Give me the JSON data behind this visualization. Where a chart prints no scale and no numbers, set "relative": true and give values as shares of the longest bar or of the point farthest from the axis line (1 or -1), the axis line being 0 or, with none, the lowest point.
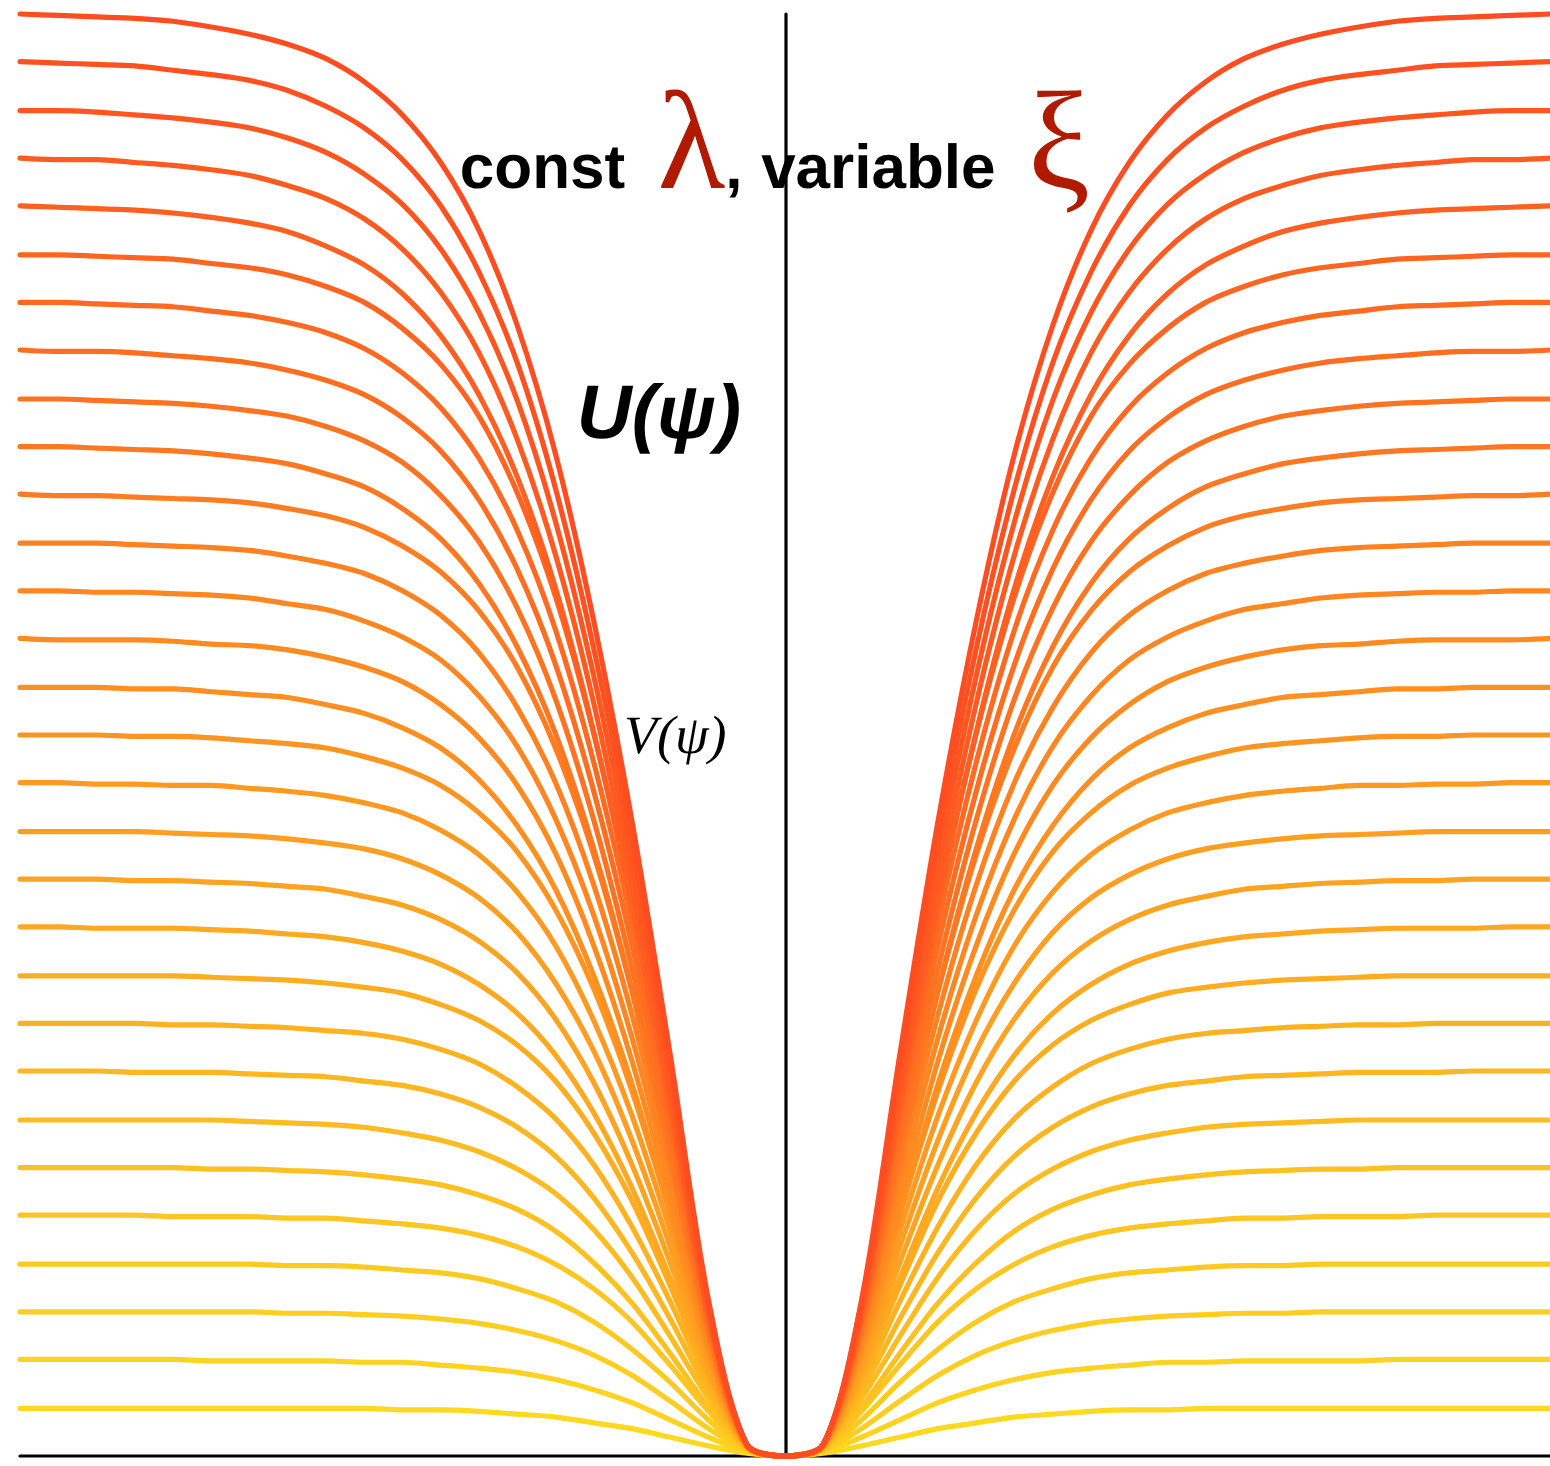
{
  "chart_data": {
    "type": "line",
    "relative": true,
    "tick_labels": false,
    "title": "const λ, variable ξ",
    "ylabel": "U(ψ)",
    "annotations": [
      "V(ψ)"
    ],
    "categories": [
      null,
      null,
      null,
      null,
      null,
      null,
      null,
      null,
      null,
      null,
      null,
      null,
      null,
      null,
      null,
      null,
      null,
      null,
      null,
      null,
      null,
      null,
      null,
      null,
      null,
      null,
      null,
      null,
      null,
      null,
      null,
      null,
      null,
      null,
      null,
      null,
      null,
      null,
      null,
      null,
      null
    ],
    "series": [
      {
        "color": "#ffd820",
        "values": [
          0.033,
          0.033,
          0.033,
          0.033,
          0.033,
          0.033,
          0.033,
          0.033,
          0.033,
          0.033,
          0.032,
          0.032,
          0.031,
          0.029,
          0.027,
          0.023,
          0.019,
          0.013,
          0.007,
          0.002,
          0,
          0.002,
          0.007,
          0.013,
          0.019,
          0.023,
          0.027,
          0.029,
          0.031,
          0.032,
          0.032,
          0.033,
          0.033,
          0.033,
          0.033,
          0.033,
          0.033,
          0.033,
          0.033,
          0.033,
          0.033
        ]
      },
      {
        "color": "#ffd320",
        "values": [
          0.067,
          0.067,
          0.067,
          0.067,
          0.067,
          0.066,
          0.066,
          0.066,
          0.066,
          0.065,
          0.065,
          0.063,
          0.061,
          0.058,
          0.053,
          0.046,
          0.037,
          0.025,
          0.013,
          0.003,
          0,
          0.003,
          0.013,
          0.025,
          0.037,
          0.046,
          0.053,
          0.058,
          0.061,
          0.063,
          0.065,
          0.065,
          0.066,
          0.066,
          0.066,
          0.066,
          0.067,
          0.067,
          0.067,
          0.067,
          0.067
        ]
      },
      {
        "color": "#ffce20",
        "values": [
          0.1,
          0.1,
          0.1,
          0.1,
          0.1,
          0.1,
          0.1,
          0.099,
          0.099,
          0.098,
          0.097,
          0.095,
          0.092,
          0.087,
          0.08,
          0.07,
          0.056,
          0.038,
          0.019,
          0.004,
          0,
          0.004,
          0.019,
          0.038,
          0.056,
          0.07,
          0.08,
          0.087,
          0.092,
          0.095,
          0.097,
          0.098,
          0.099,
          0.099,
          0.1,
          0.1,
          0.1,
          0.1,
          0.1,
          0.1,
          0.1
        ]
      },
      {
        "color": "#ffca20",
        "values": [
          0.133,
          0.133,
          0.133,
          0.133,
          0.133,
          0.133,
          0.133,
          0.132,
          0.132,
          0.131,
          0.129,
          0.127,
          0.123,
          0.116,
          0.107,
          0.093,
          0.074,
          0.051,
          0.025,
          0.004,
          0,
          0.004,
          0.025,
          0.051,
          0.074,
          0.093,
          0.107,
          0.116,
          0.123,
          0.127,
          0.129,
          0.131,
          0.132,
          0.132,
          0.133,
          0.133,
          0.133,
          0.133,
          0.133,
          0.133,
          0.133
        ]
      },
      {
        "color": "#ffc520",
        "values": [
          0.167,
          0.167,
          0.167,
          0.167,
          0.166,
          0.166,
          0.166,
          0.165,
          0.165,
          0.163,
          0.161,
          0.158,
          0.153,
          0.145,
          0.133,
          0.116,
          0.093,
          0.063,
          0.031,
          0.005,
          0,
          0.005,
          0.031,
          0.063,
          0.093,
          0.116,
          0.133,
          0.145,
          0.153,
          0.158,
          0.161,
          0.163,
          0.165,
          0.165,
          0.166,
          0.166,
          0.166,
          0.167,
          0.167,
          0.167,
          0.167
        ]
      },
      {
        "color": "#ffc020",
        "values": [
          0.2,
          0.2,
          0.2,
          0.2,
          0.2,
          0.199,
          0.199,
          0.198,
          0.197,
          0.195,
          0.192,
          0.188,
          0.181,
          0.171,
          0.156,
          0.134,
          0.106,
          0.071,
          0.034,
          0.005,
          0,
          0.005,
          0.034,
          0.071,
          0.106,
          0.134,
          0.156,
          0.171,
          0.181,
          0.188,
          0.192,
          0.195,
          0.197,
          0.198,
          0.199,
          0.199,
          0.2,
          0.2,
          0.2,
          0.2,
          0.2
        ]
      },
      {
        "color": "#ffbb20",
        "values": [
          0.233,
          0.233,
          0.233,
          0.233,
          0.233,
          0.233,
          0.232,
          0.231,
          0.23,
          0.228,
          0.224,
          0.219,
          0.211,
          0.199,
          0.182,
          0.157,
          0.124,
          0.083,
          0.04,
          0.006,
          0,
          0.006,
          0.04,
          0.083,
          0.124,
          0.157,
          0.182,
          0.199,
          0.211,
          0.219,
          0.224,
          0.228,
          0.23,
          0.231,
          0.232,
          0.233,
          0.233,
          0.233,
          0.233,
          0.233,
          0.233
        ]
      },
      {
        "color": "#ffb620",
        "values": [
          0.267,
          0.267,
          0.267,
          0.266,
          0.266,
          0.266,
          0.265,
          0.264,
          0.263,
          0.26,
          0.257,
          0.251,
          0.242,
          0.228,
          0.208,
          0.179,
          0.141,
          0.095,
          0.045,
          0.006,
          0,
          0.006,
          0.045,
          0.095,
          0.141,
          0.179,
          0.208,
          0.228,
          0.242,
          0.251,
          0.257,
          0.26,
          0.263,
          0.264,
          0.265,
          0.266,
          0.266,
          0.266,
          0.267,
          0.267,
          0.267
        ]
      },
      {
        "color": "#ffb120",
        "values": [
          0.3,
          0.3,
          0.3,
          0.3,
          0.299,
          0.299,
          0.298,
          0.297,
          0.295,
          0.293,
          0.289,
          0.282,
          0.272,
          0.256,
          0.234,
          0.202,
          0.159,
          0.107,
          0.05,
          0.006,
          0,
          0.006,
          0.05,
          0.107,
          0.159,
          0.202,
          0.234,
          0.256,
          0.272,
          0.282,
          0.289,
          0.293,
          0.295,
          0.297,
          0.298,
          0.299,
          0.299,
          0.3,
          0.3,
          0.3,
          0.3
        ]
      },
      {
        "color": "#ffad20",
        "values": [
          0.333,
          0.333,
          0.333,
          0.333,
          0.333,
          0.332,
          0.331,
          0.33,
          0.328,
          0.325,
          0.321,
          0.313,
          0.302,
          0.285,
          0.26,
          0.224,
          0.177,
          0.118,
          0.055,
          0.006,
          0,
          0.006,
          0.055,
          0.118,
          0.177,
          0.224,
          0.26,
          0.285,
          0.302,
          0.313,
          0.321,
          0.325,
          0.328,
          0.33,
          0.331,
          0.332,
          0.333,
          0.333,
          0.333,
          0.333,
          0.333
        ]
      },
      {
        "color": "#ffa820",
        "values": [
          0.367,
          0.367,
          0.366,
          0.366,
          0.366,
          0.365,
          0.364,
          0.362,
          0.36,
          0.356,
          0.35,
          0.341,
          0.327,
          0.307,
          0.278,
          0.238,
          0.186,
          0.123,
          0.056,
          0.006,
          0,
          0.006,
          0.056,
          0.123,
          0.186,
          0.238,
          0.278,
          0.307,
          0.327,
          0.341,
          0.35,
          0.356,
          0.36,
          0.362,
          0.364,
          0.365,
          0.366,
          0.366,
          0.366,
          0.367,
          0.367
        ]
      },
      {
        "color": "#ffa320",
        "values": [
          0.4,
          0.4,
          0.4,
          0.399,
          0.399,
          0.398,
          0.397,
          0.395,
          0.393,
          0.388,
          0.382,
          0.372,
          0.357,
          0.335,
          0.303,
          0.259,
          0.202,
          0.134,
          0.06,
          0.007,
          0,
          0.007,
          0.06,
          0.134,
          0.202,
          0.259,
          0.303,
          0.335,
          0.357,
          0.372,
          0.382,
          0.388,
          0.393,
          0.395,
          0.397,
          0.398,
          0.399,
          0.399,
          0.4,
          0.4,
          0.4
        ]
      },
      {
        "color": "#ff9e20",
        "values": [
          0.433,
          0.433,
          0.433,
          0.433,
          0.432,
          0.431,
          0.43,
          0.428,
          0.425,
          0.421,
          0.414,
          0.403,
          0.387,
          0.363,
          0.328,
          0.281,
          0.219,
          0.145,
          0.064,
          0.007,
          0,
          0.007,
          0.064,
          0.145,
          0.219,
          0.281,
          0.328,
          0.363,
          0.387,
          0.403,
          0.414,
          0.421,
          0.425,
          0.428,
          0.43,
          0.431,
          0.432,
          0.433,
          0.433,
          0.433,
          0.433
        ]
      },
      {
        "color": "#ff9920",
        "values": [
          0.467,
          0.467,
          0.466,
          0.466,
          0.465,
          0.465,
          0.463,
          0.461,
          0.458,
          0.453,
          0.446,
          0.434,
          0.417,
          0.391,
          0.354,
          0.302,
          0.236,
          0.156,
          0.069,
          0.007,
          0,
          0.007,
          0.069,
          0.156,
          0.236,
          0.302,
          0.354,
          0.391,
          0.417,
          0.434,
          0.446,
          0.453,
          0.458,
          0.461,
          0.463,
          0.465,
          0.465,
          0.466,
          0.466,
          0.467,
          0.467
        ]
      },
      {
        "color": "#ff9420",
        "values": [
          0.5,
          0.5,
          0.5,
          0.499,
          0.499,
          0.498,
          0.496,
          0.494,
          0.491,
          0.485,
          0.477,
          0.465,
          0.446,
          0.419,
          0.379,
          0.324,
          0.253,
          0.167,
          0.073,
          0.007,
          0,
          0.007,
          0.073,
          0.167,
          0.253,
          0.324,
          0.379,
          0.419,
          0.446,
          0.465,
          0.477,
          0.485,
          0.491,
          0.494,
          0.496,
          0.498,
          0.499,
          0.499,
          0.5,
          0.5,
          0.5
        ]
      },
      {
        "color": "#ff9020",
        "values": [
          0.533,
          0.533,
          0.533,
          0.532,
          0.532,
          0.53,
          0.528,
          0.526,
          0.521,
          0.515,
          0.505,
          0.491,
          0.469,
          0.437,
          0.393,
          0.333,
          0.258,
          0.168,
          0.073,
          0.007,
          0,
          0.007,
          0.073,
          0.168,
          0.258,
          0.333,
          0.393,
          0.437,
          0.469,
          0.491,
          0.505,
          0.515,
          0.521,
          0.526,
          0.528,
          0.53,
          0.532,
          0.532,
          0.533,
          0.533,
          0.533
        ]
      },
      {
        "color": "#ff8b20",
        "values": [
          0.567,
          0.566,
          0.566,
          0.566,
          0.565,
          0.563,
          0.562,
          0.559,
          0.554,
          0.547,
          0.537,
          0.521,
          0.498,
          0.465,
          0.418,
          0.354,
          0.274,
          0.178,
          0.077,
          0.007,
          0,
          0.007,
          0.077,
          0.178,
          0.274,
          0.354,
          0.418,
          0.465,
          0.498,
          0.521,
          0.537,
          0.547,
          0.554,
          0.559,
          0.562,
          0.563,
          0.565,
          0.566,
          0.566,
          0.566,
          0.567
        ]
      },
      {
        "color": "#ff8620",
        "values": [
          0.6,
          0.6,
          0.599,
          0.599,
          0.598,
          0.597,
          0.595,
          0.591,
          0.587,
          0.579,
          0.568,
          0.552,
          0.527,
          0.492,
          0.442,
          0.375,
          0.29,
          0.189,
          0.08,
          0.007,
          0,
          0.007,
          0.08,
          0.189,
          0.29,
          0.375,
          0.442,
          0.492,
          0.527,
          0.552,
          0.568,
          0.579,
          0.587,
          0.591,
          0.595,
          0.597,
          0.598,
          0.599,
          0.599,
          0.6,
          0.6
        ]
      },
      {
        "color": "#ff8120",
        "values": [
          0.633,
          0.633,
          0.633,
          0.632,
          0.631,
          0.63,
          0.628,
          0.624,
          0.619,
          0.612,
          0.6,
          0.583,
          0.557,
          0.519,
          0.467,
          0.396,
          0.306,
          0.199,
          0.084,
          0.007,
          0,
          0.007,
          0.084,
          0.199,
          0.306,
          0.396,
          0.467,
          0.519,
          0.557,
          0.583,
          0.6,
          0.612,
          0.619,
          0.624,
          0.628,
          0.63,
          0.631,
          0.632,
          0.633,
          0.633,
          0.633
        ]
      },
      {
        "color": "#ff7c20",
        "values": [
          0.667,
          0.666,
          0.666,
          0.665,
          0.664,
          0.663,
          0.661,
          0.657,
          0.652,
          0.644,
          0.631,
          0.613,
          0.586,
          0.547,
          0.491,
          0.417,
          0.322,
          0.209,
          0.087,
          0.008,
          0,
          0.008,
          0.087,
          0.209,
          0.322,
          0.417,
          0.491,
          0.547,
          0.586,
          0.613,
          0.631,
          0.644,
          0.652,
          0.657,
          0.661,
          0.663,
          0.664,
          0.665,
          0.666,
          0.666,
          0.667
        ]
      },
      {
        "color": "#ff7720",
        "values": [
          0.7,
          0.7,
          0.699,
          0.698,
          0.697,
          0.695,
          0.692,
          0.688,
          0.681,
          0.672,
          0.657,
          0.636,
          0.605,
          0.561,
          0.501,
          0.421,
          0.323,
          0.207,
          0.086,
          0.008,
          0,
          0.008,
          0.086,
          0.207,
          0.323,
          0.421,
          0.501,
          0.561,
          0.605,
          0.636,
          0.657,
          0.672,
          0.681,
          0.688,
          0.692,
          0.695,
          0.697,
          0.698,
          0.699,
          0.7,
          0.7
        ]
      },
      {
        "color": "#ff7320",
        "values": [
          0.733,
          0.733,
          0.732,
          0.731,
          0.73,
          0.728,
          0.725,
          0.721,
          0.714,
          0.704,
          0.689,
          0.666,
          0.634,
          0.588,
          0.525,
          0.441,
          0.338,
          0.217,
          0.09,
          0.008,
          0,
          0.008,
          0.09,
          0.217,
          0.338,
          0.441,
          0.525,
          0.588,
          0.634,
          0.666,
          0.689,
          0.704,
          0.714,
          0.721,
          0.725,
          0.728,
          0.73,
          0.731,
          0.732,
          0.733,
          0.733
        ]
      },
      {
        "color": "#ff6e20",
        "values": [
          0.767,
          0.766,
          0.766,
          0.765,
          0.763,
          0.761,
          0.758,
          0.753,
          0.746,
          0.736,
          0.72,
          0.697,
          0.663,
          0.615,
          0.549,
          0.461,
          0.354,
          0.227,
          0.093,
          0.008,
          0,
          0.008,
          0.093,
          0.227,
          0.354,
          0.461,
          0.549,
          0.615,
          0.663,
          0.697,
          0.72,
          0.736,
          0.746,
          0.753,
          0.758,
          0.761,
          0.763,
          0.765,
          0.766,
          0.766,
          0.767
        ]
      },
      {
        "color": "#ff6920",
        "values": [
          0.8,
          0.8,
          0.799,
          0.798,
          0.797,
          0.794,
          0.791,
          0.786,
          0.779,
          0.768,
          0.751,
          0.727,
          0.692,
          0.642,
          0.573,
          0.481,
          0.369,
          0.236,
          0.096,
          0.008,
          0,
          0.008,
          0.096,
          0.236,
          0.369,
          0.481,
          0.573,
          0.642,
          0.692,
          0.727,
          0.751,
          0.768,
          0.779,
          0.786,
          0.791,
          0.794,
          0.797,
          0.798,
          0.799,
          0.8,
          0.8
        ]
      },
      {
        "color": "#ff6420",
        "values": [
          0.833,
          0.833,
          0.832,
          0.831,
          0.83,
          0.827,
          0.824,
          0.819,
          0.811,
          0.8,
          0.782,
          0.757,
          0.721,
          0.668,
          0.596,
          0.501,
          0.384,
          0.246,
          0.099,
          0.008,
          0,
          0.008,
          0.099,
          0.246,
          0.384,
          0.501,
          0.596,
          0.668,
          0.721,
          0.757,
          0.782,
          0.8,
          0.811,
          0.819,
          0.824,
          0.827,
          0.83,
          0.831,
          0.832,
          0.833,
          0.833
        ]
      },
      {
        "color": "#ff5f20",
        "values": [
          0.867,
          0.866,
          0.865,
          0.864,
          0.862,
          0.859,
          0.855,
          0.849,
          0.839,
          0.826,
          0.806,
          0.777,
          0.736,
          0.679,
          0.602,
          0.502,
          0.382,
          0.242,
          0.097,
          0.008,
          0,
          0.008,
          0.097,
          0.242,
          0.382,
          0.502,
          0.602,
          0.679,
          0.736,
          0.777,
          0.806,
          0.826,
          0.839,
          0.849,
          0.855,
          0.859,
          0.862,
          0.864,
          0.865,
          0.866,
          0.867
        ]
      },
      {
        "color": "#ff5a20",
        "values": [
          0.9,
          0.899,
          0.899,
          0.897,
          0.895,
          0.892,
          0.888,
          0.881,
          0.872,
          0.858,
          0.837,
          0.807,
          0.765,
          0.705,
          0.625,
          0.522,
          0.396,
          0.251,
          0.1,
          0.008,
          0,
          0.008,
          0.1,
          0.251,
          0.396,
          0.522,
          0.625,
          0.705,
          0.765,
          0.807,
          0.837,
          0.858,
          0.872,
          0.881,
          0.888,
          0.892,
          0.895,
          0.897,
          0.899,
          0.899,
          0.9
        ]
      },
      {
        "color": "#ff5620",
        "values": [
          0.933,
          0.933,
          0.932,
          0.93,
          0.928,
          0.925,
          0.921,
          0.914,
          0.904,
          0.889,
          0.868,
          0.837,
          0.793,
          0.732,
          0.648,
          0.541,
          0.411,
          0.26,
          0.103,
          0.008,
          0,
          0.008,
          0.103,
          0.26,
          0.411,
          0.541,
          0.648,
          0.732,
          0.793,
          0.837,
          0.868,
          0.889,
          0.904,
          0.914,
          0.921,
          0.925,
          0.928,
          0.93,
          0.932,
          0.933,
          0.933
        ]
      },
      {
        "color": "#ff5120",
        "values": [
          0.967,
          0.966,
          0.965,
          0.964,
          0.961,
          0.958,
          0.954,
          0.947,
          0.936,
          0.921,
          0.899,
          0.867,
          0.821,
          0.758,
          0.671,
          0.56,
          0.426,
          0.269,
          0.106,
          0.008,
          0,
          0.008,
          0.106,
          0.269,
          0.426,
          0.56,
          0.671,
          0.758,
          0.821,
          0.867,
          0.899,
          0.921,
          0.936,
          0.947,
          0.954,
          0.958,
          0.961,
          0.964,
          0.965,
          0.966,
          0.967
        ]
      },
      {
        "color": "#ff4c20",
        "values": [
          1,
          0.999,
          0.998,
          0.997,
          0.995,
          0.991,
          0.986,
          0.979,
          0.969,
          0.953,
          0.93,
          0.897,
          0.85,
          0.784,
          0.695,
          0.579,
          0.44,
          0.278,
          0.108,
          0.008,
          0,
          0.008,
          0.108,
          0.278,
          0.44,
          0.579,
          0.695,
          0.784,
          0.85,
          0.897,
          0.93,
          0.953,
          0.969,
          0.979,
          0.986,
          0.991,
          0.995,
          0.997,
          0.998,
          0.999,
          1
        ]
      }
    ]
  }
}
